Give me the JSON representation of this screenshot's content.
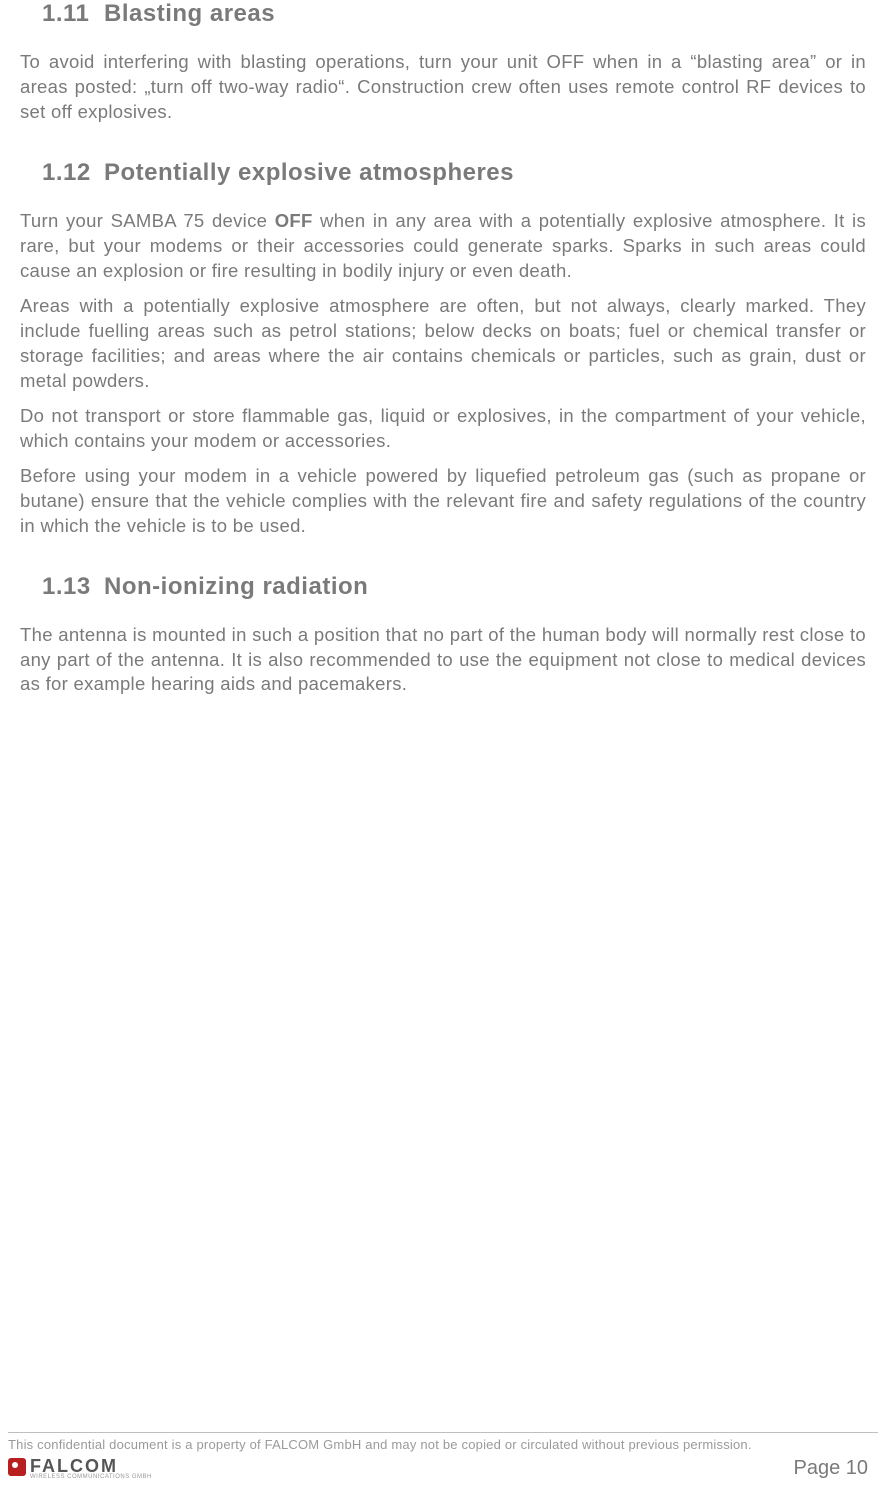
{
  "sections": {
    "s1": {
      "num": "1.11",
      "title": "Blasting areas"
    },
    "s2": {
      "num": "1.12",
      "title": "Potentially explosive atmospheres"
    },
    "s3": {
      "num": "1.13",
      "title": "Non-ionizing radiation"
    }
  },
  "paragraphs": {
    "p1": "To avoid interfering with blasting operations, turn your unit OFF when in a “blasting area” or in areas posted: „turn off two-way radio“. Construction crew often uses remote control RF devices to set off explosives.",
    "p2a": "Turn your SAMBA 75 device ",
    "p2b": "OFF",
    "p2c": " when in any area with a potentially explosive atmosphere. It is rare, but your modems or their accessories could generate sparks. Sparks in such areas could cause an explosion or fire resulting in bodily injury or even death.",
    "p3": "Areas with a potentially explosive atmosphere are often, but not always, clearly marked. They include fuelling areas such as petrol stations; below decks on boats; fuel or chemical transfer or storage facilities; and areas where the air contains chemicals or particles, such as grain, dust or metal powders.",
    "p4": "Do not transport or store flammable gas, liquid or explosives, in the compartment of your vehicle, which contains your modem or accessories.",
    "p5": "Before using your modem in a vehicle powered by liquefied petroleum gas (such as propane or butane) ensure that the vehicle complies with the relevant fire and safety regulations of the country in which the vehicle is to be used.",
    "p6": "The antenna is mounted in such a position that no part of the human body will normally rest close to any part of the antenna. It is also recommended to use the equipment not close to medical devices as for example hearing aids and pacemakers."
  },
  "footer": {
    "confidential": "This confidential document is a property of FALCOM GmbH and may not be copied or circulated without previous permission.",
    "logo_word": "FALCOM",
    "logo_tag": "WIRELESS COMMUNICATIONS GMBH",
    "page": "Page 10"
  }
}
